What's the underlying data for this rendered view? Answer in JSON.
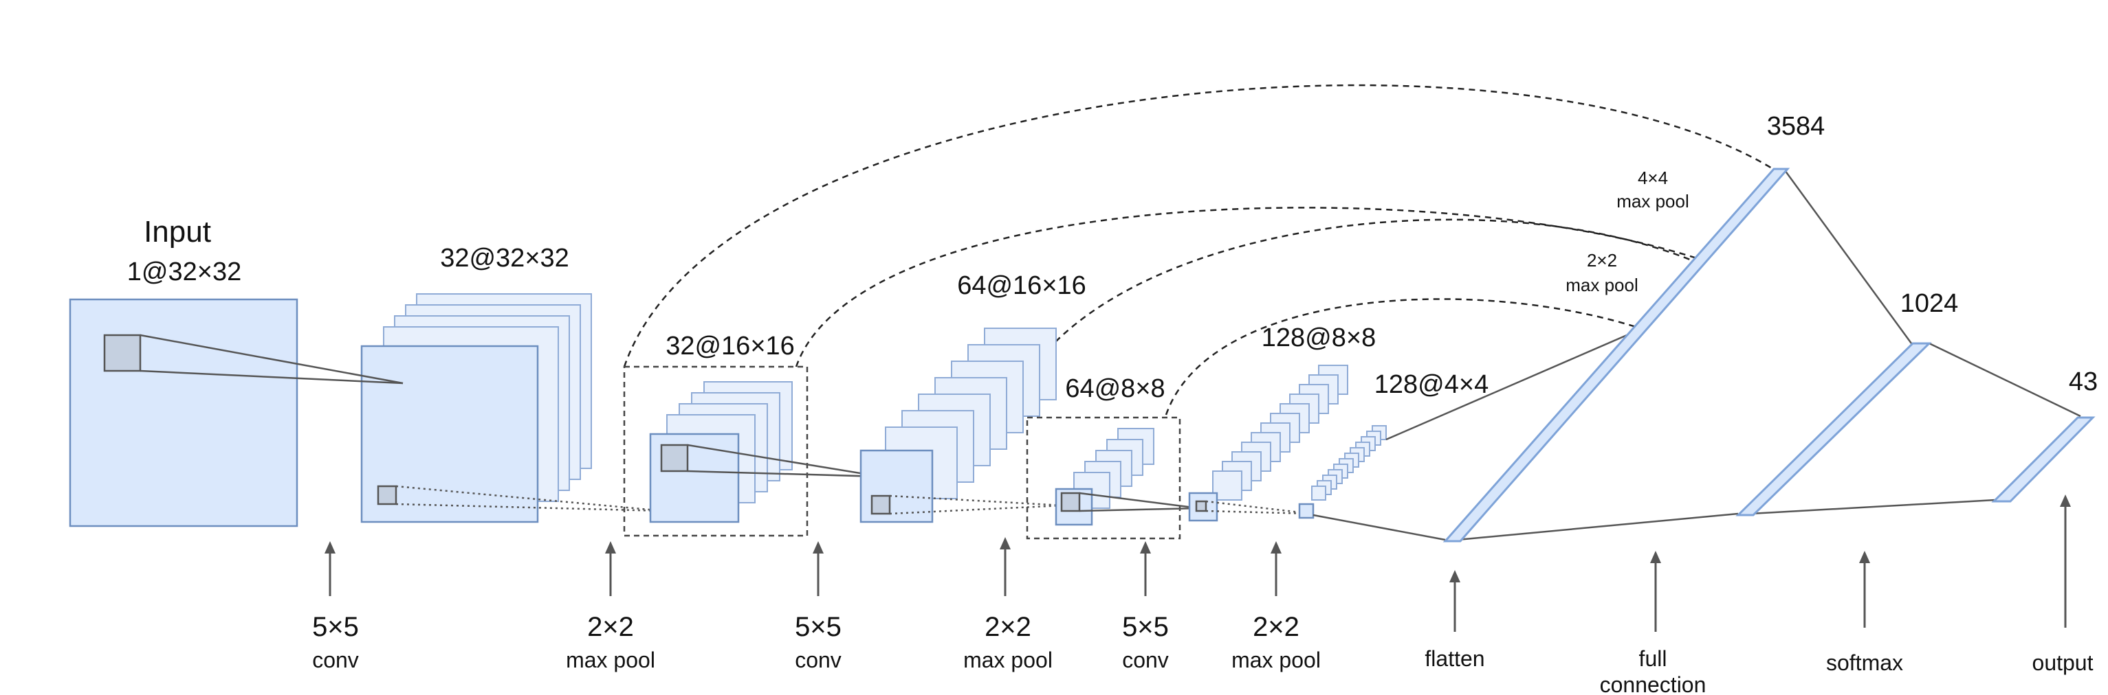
{
  "input": {
    "title": "Input",
    "dims": "1@32×32"
  },
  "layers": [
    {
      "id": "conv1",
      "label": "32@32×32"
    },
    {
      "id": "pool1",
      "label": "32@16×16"
    },
    {
      "id": "conv2",
      "label": "64@16×16"
    },
    {
      "id": "pool2",
      "label": "64@8×8"
    },
    {
      "id": "conv3",
      "label": "128@8×8"
    },
    {
      "id": "pool3",
      "label": "128@4×4"
    }
  ],
  "dense": [
    {
      "id": "flat",
      "label": "3584"
    },
    {
      "id": "fc",
      "label": "1024"
    },
    {
      "id": "out",
      "label": "43"
    }
  ],
  "skip_notes": [
    {
      "line1": "4×4",
      "line2": "max pool"
    },
    {
      "line1": "2×2",
      "line2": "max pool"
    }
  ],
  "operations": [
    {
      "line1": "5×5",
      "line2": "conv"
    },
    {
      "line1": "2×2",
      "line2": "max pool"
    },
    {
      "line1": "5×5",
      "line2": "conv"
    },
    {
      "line1": "2×2",
      "line2": "max pool"
    },
    {
      "line1": "5×5",
      "line2": "conv"
    },
    {
      "line1": "2×2",
      "line2": "max pool"
    },
    {
      "line1": "",
      "line2": "flatten"
    },
    {
      "line1": "",
      "line2": "full",
      "line3": "connection"
    },
    {
      "line1": "",
      "line2": "softmax"
    },
    {
      "line1": "",
      "line2": "output"
    }
  ],
  "colors": {
    "fill": "#dae8fc",
    "stroke": "#6c8ebf",
    "patch": "#c5d0e0",
    "line": "#555555"
  }
}
